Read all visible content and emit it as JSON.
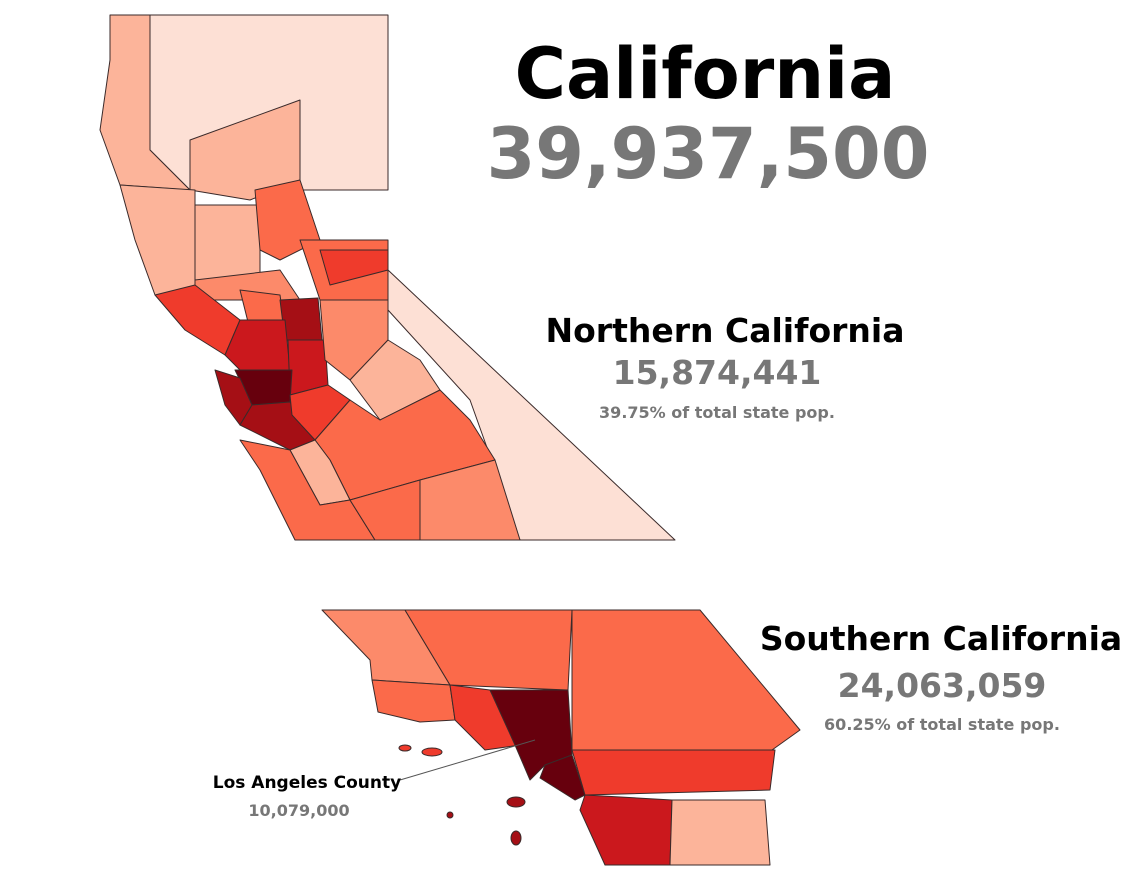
{
  "title": "California",
  "total": "39,937,500",
  "regions": [
    {
      "name": "Northern California",
      "population": "15,874,441",
      "share": "39.75% of total state pop."
    },
    {
      "name": "Southern California",
      "population": "24,063,059",
      "share": "60.25% of total state pop."
    }
  ],
  "callout": {
    "name": "Los Angeles County",
    "population": "10,079,000"
  }
}
